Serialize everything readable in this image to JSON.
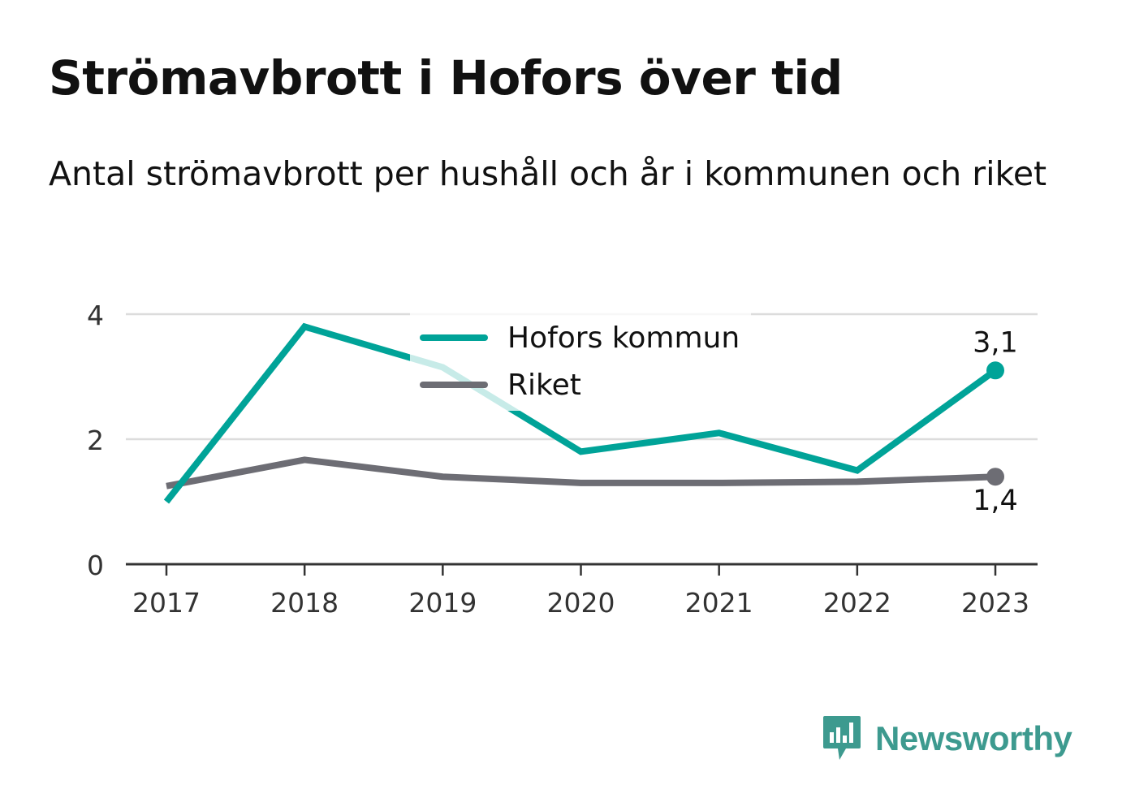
{
  "title": "Strömavbrott i Hofors över tid",
  "subtitle": "Antal strömavbrott per hushåll och år i kommunen och riket",
  "brand": {
    "name": "Newsworthy",
    "color": "#3d9a8f"
  },
  "legend": [
    {
      "label": "Hofors kommun",
      "color": "#00a398"
    },
    {
      "label": "Riket",
      "color": "#6d6d74"
    }
  ],
  "chart_data": {
    "type": "line",
    "title": "Strömavbrott i Hofors över tid",
    "subtitle": "Antal strömavbrott per hushåll och år i kommunen och riket",
    "xlabel": "",
    "ylabel": "",
    "x": [
      "2017",
      "2018",
      "2019",
      "2020",
      "2021",
      "2022",
      "2023"
    ],
    "ylim": [
      0,
      4
    ],
    "yticks": [
      "0",
      "2",
      "4"
    ],
    "grid": true,
    "legend_position": "top-center",
    "series": [
      {
        "name": "Hofors kommun",
        "color": "#00a398",
        "values": [
          1.0,
          3.8,
          3.15,
          1.8,
          2.1,
          1.5,
          3.1
        ],
        "end_label": "3,1"
      },
      {
        "name": "Riket",
        "color": "#6d6d74",
        "values": [
          1.25,
          1.67,
          1.4,
          1.3,
          1.3,
          1.32,
          1.4
        ],
        "end_label": "1,4"
      }
    ]
  }
}
